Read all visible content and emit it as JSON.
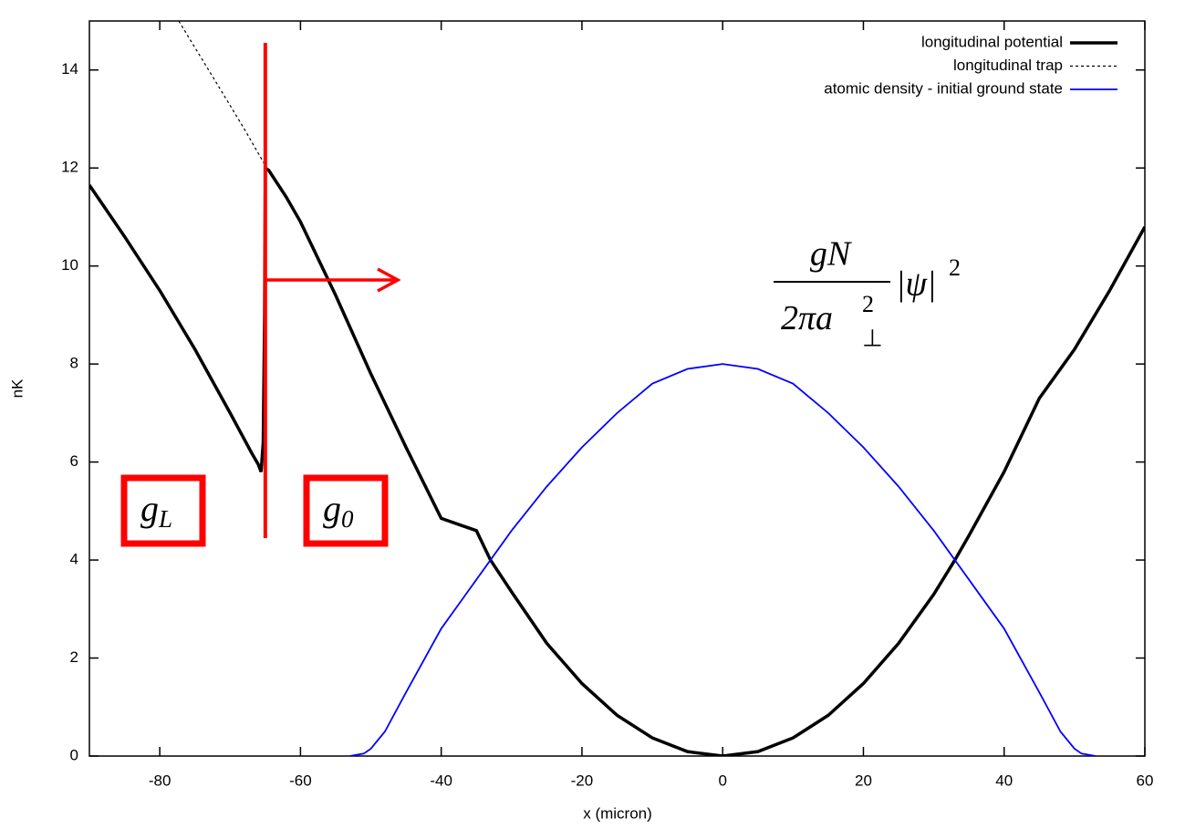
{
  "chart_data": {
    "type": "line",
    "x_label": "x (micron)",
    "y_label": "nK",
    "xlim": [
      -90,
      60
    ],
    "xticks": [
      -80,
      -60,
      -40,
      -20,
      0,
      20,
      40,
      60
    ],
    "ylim": [
      0,
      15
    ],
    "yticks": [
      0,
      2,
      4,
      6,
      8,
      10,
      12,
      14
    ],
    "grid": false,
    "legend": "top-right",
    "series": [
      {
        "name": "longitudinal potential",
        "color": "#000000",
        "dashed": false,
        "x": [
          -90,
          -85,
          -80,
          -75,
          -70,
          -67,
          -66,
          -65.6,
          -65.3,
          -65.1,
          -65,
          -64.5,
          -62,
          -60,
          -55,
          -50,
          -45,
          -40,
          -35,
          -33,
          -30,
          -25,
          -20,
          -15,
          -10,
          -5,
          0,
          5,
          10,
          15,
          20,
          25,
          30,
          33,
          35,
          40,
          45,
          50,
          55,
          60
        ],
        "values": [
          11.65,
          10.6,
          9.5,
          8.3,
          7.0,
          6.2,
          5.95,
          5.8,
          6.4,
          9.0,
          12.0,
          11.95,
          11.4,
          10.9,
          9.4,
          7.8,
          6.3,
          4.85,
          4.6,
          4.0,
          3.35,
          2.3,
          1.48,
          0.83,
          0.37,
          0.09,
          0,
          0.09,
          0.37,
          0.83,
          1.48,
          2.3,
          3.3,
          4.0,
          4.5,
          5.8,
          7.3,
          8.3,
          9.5,
          10.8
        ]
      },
      {
        "name": "longitudinal trap",
        "color": "#000000",
        "dashed": true,
        "x": [
          -77.3,
          -72,
          -68,
          -65
        ],
        "values": [
          15,
          13.75,
          12.8,
          12.05
        ]
      },
      {
        "name": "atomic density - initial ground state",
        "color": "#0000ff",
        "dashed": false,
        "x": [
          -53,
          -51,
          -50,
          -48,
          -45,
          -40,
          -35,
          -33,
          -30,
          -25,
          -20,
          -15,
          -10,
          -5,
          0,
          5,
          10,
          15,
          20,
          25,
          30,
          33,
          35,
          40,
          45,
          48,
          50,
          51,
          53
        ],
        "values": [
          0,
          0.05,
          0.15,
          0.5,
          1.3,
          2.6,
          3.6,
          4.0,
          4.6,
          5.5,
          6.3,
          7.0,
          7.6,
          7.9,
          8,
          7.9,
          7.6,
          7.0,
          6.3,
          5.5,
          4.6,
          4.0,
          3.6,
          2.6,
          1.3,
          0.5,
          0.15,
          0.05,
          0
        ]
      }
    ],
    "barrier": {
      "x": -65
    },
    "labels": {
      "left_region": {
        "base": "g",
        "sub": "L"
      },
      "right_region": {
        "base": "g",
        "sub": "0"
      },
      "formula": {
        "numerator": "gN",
        "denominator": "2πa",
        "denominator_sup": "2",
        "denominator_sub": "⊥",
        "factor": "|ψ|",
        "factor_sup": "2"
      }
    }
  }
}
